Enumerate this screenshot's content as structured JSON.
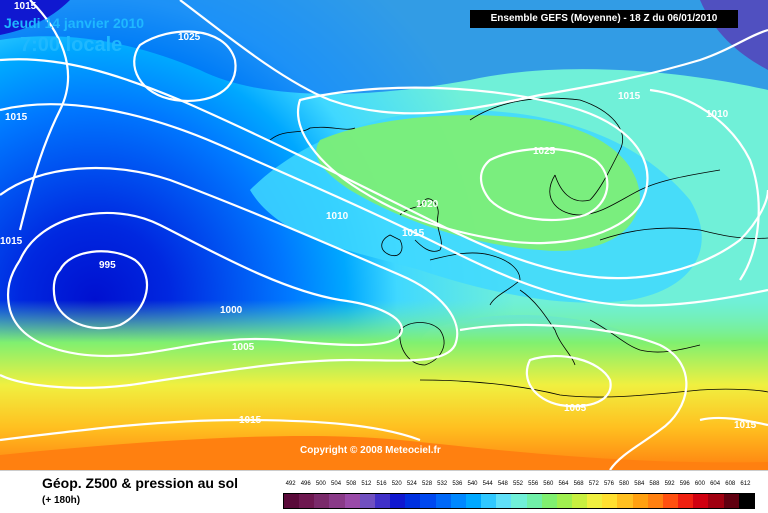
{
  "header": {
    "date": "Jeudi 14 janvier 2010",
    "time": "7:00 locale",
    "run_info": "Ensemble GEFS (Moyenne)   - 18 Z du 06/01/2010"
  },
  "copyright": "Copyright © 2008 Meteociel.fr",
  "isobars": [
    "1015",
    "1025",
    "1015",
    "1015",
    "1015",
    "1010",
    "1025",
    "1020",
    "1015",
    "1010",
    "995",
    "1000",
    "1005",
    "1005",
    "1015",
    "1015"
  ],
  "legend": {
    "title": "Géop. Z500 & pression au sol",
    "subtitle": "(+ 180h)",
    "scale_values": [
      "492",
      "496",
      "500",
      "504",
      "508",
      "512",
      "516",
      "520",
      "524",
      "528",
      "532",
      "536",
      "540",
      "544",
      "548",
      "552",
      "556",
      "560",
      "564",
      "568",
      "572",
      "576",
      "580",
      "584",
      "588",
      "592",
      "596",
      "600",
      "604",
      "608",
      "612"
    ],
    "scale_colors": [
      "#5a0a3a",
      "#6e1850",
      "#7a2a6a",
      "#8a3a88",
      "#9a4aa8",
      "#7050c0",
      "#4030c8",
      "#1018d0",
      "#0030e0",
      "#0048f0",
      "#0068f8",
      "#0088ff",
      "#00a8ff",
      "#30c8ff",
      "#60e0f8",
      "#70f0d8",
      "#70f0a8",
      "#80f070",
      "#a0f050",
      "#c8f040",
      "#f0f040",
      "#ffe030",
      "#ffc020",
      "#ffa010",
      "#ff8010",
      "#ff5010",
      "#f02010",
      "#d00010",
      "#a00010",
      "#600010",
      "#000000"
    ]
  },
  "colors": {
    "header_text": "#1fb8ff",
    "isobar": "#ffffff"
  }
}
